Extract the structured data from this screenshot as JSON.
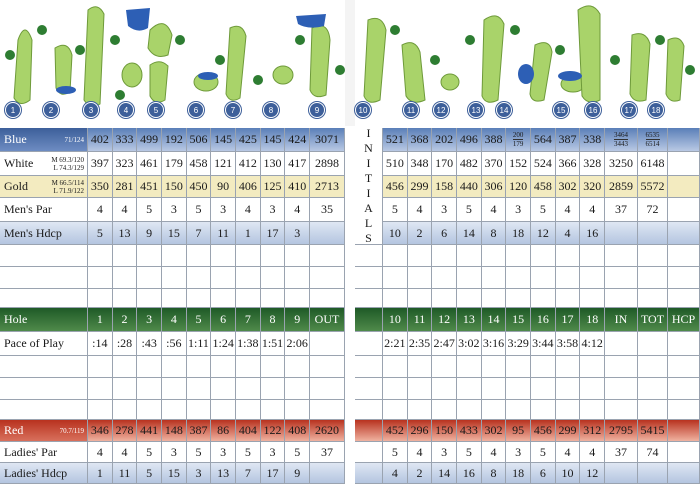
{
  "holes": [
    1,
    2,
    3,
    4,
    5,
    6,
    7,
    8,
    9,
    10,
    11,
    12,
    13,
    14,
    15,
    16,
    17,
    18
  ],
  "front": {
    "rows": [
      {
        "label": "Blue",
        "note": [
          "71/124"
        ],
        "cells": [
          402,
          333,
          499,
          192,
          506,
          145,
          425,
          145,
          424,
          3071
        ]
      },
      {
        "label": "White",
        "note": [
          "M 69.3/120",
          "L 74.3/129"
        ],
        "cells": [
          397,
          323,
          461,
          179,
          458,
          121,
          412,
          130,
          417,
          2898
        ]
      },
      {
        "label": "Gold",
        "note": [
          "M 66.5/114",
          "L 71.9/122"
        ],
        "cells": [
          350,
          281,
          451,
          150,
          450,
          90,
          406,
          125,
          410,
          2713
        ]
      },
      {
        "label": "Men's Par",
        "cells": [
          4,
          4,
          5,
          3,
          5,
          3,
          4,
          3,
          4,
          35
        ]
      },
      {
        "label": "Men's Hdcp",
        "cells": [
          5,
          13,
          9,
          15,
          7,
          11,
          1,
          17,
          3
        ]
      },
      {
        "label": "Hole",
        "cells": [
          1,
          2,
          3,
          4,
          5,
          6,
          7,
          8,
          9,
          "OUT"
        ]
      },
      {
        "label": "Pace of Play",
        "cells": [
          ":14",
          ":28",
          ":43",
          ":56",
          "1:11",
          "1:24",
          "1:38",
          "1:51",
          "2:06"
        ]
      },
      {
        "label": "Red",
        "note": [
          "70.7/119"
        ],
        "cells": [
          346,
          278,
          441,
          148,
          387,
          86,
          404,
          122,
          408,
          2620
        ]
      },
      {
        "label": "Ladies' Par",
        "cells": [
          4,
          4,
          5,
          3,
          5,
          3,
          5,
          3,
          5,
          37
        ]
      },
      {
        "label": "Ladies' Hdcp",
        "cells": [
          1,
          11,
          5,
          15,
          3,
          13,
          7,
          17,
          9
        ]
      }
    ]
  },
  "back": {
    "initials": [
      "I",
      "N",
      "I",
      "T",
      "I",
      "A",
      "L",
      "S"
    ],
    "rows": [
      {
        "cells": [
          521,
          368,
          202,
          496,
          388,
          {
            "top": "200",
            "bottom": "179"
          },
          564,
          387,
          338,
          {
            "top": "3464",
            "bottom": "3443"
          },
          {
            "top": "6535",
            "bottom": "6514"
          }
        ]
      },
      {
        "cells": [
          510,
          348,
          170,
          482,
          370,
          152,
          524,
          366,
          328,
          3250,
          6148
        ]
      },
      {
        "cells": [
          456,
          299,
          158,
          440,
          306,
          120,
          458,
          302,
          320,
          2859,
          5572
        ]
      },
      {
        "cells": [
          5,
          4,
          3,
          5,
          4,
          3,
          5,
          4,
          4,
          37,
          72
        ]
      },
      {
        "cells": [
          10,
          2,
          6,
          14,
          8,
          18,
          12,
          4,
          16
        ]
      },
      {
        "cells": [
          10,
          11,
          12,
          13,
          14,
          15,
          16,
          17,
          18,
          "IN",
          "TOT",
          "HCP"
        ]
      },
      {
        "cells": [
          "2:21",
          "2:35",
          "2:47",
          "3:02",
          "3:16",
          "3:29",
          "3:44",
          "3:58",
          "4:12"
        ]
      },
      {
        "cells": [
          452,
          296,
          150,
          433,
          302,
          95,
          456,
          299,
          312,
          2795,
          5415
        ]
      },
      {
        "cells": [
          5,
          4,
          3,
          5,
          4,
          3,
          5,
          4,
          4,
          37,
          74
        ]
      },
      {
        "cells": [
          4,
          2,
          14,
          16,
          8,
          18,
          6,
          10,
          12
        ]
      }
    ]
  }
}
